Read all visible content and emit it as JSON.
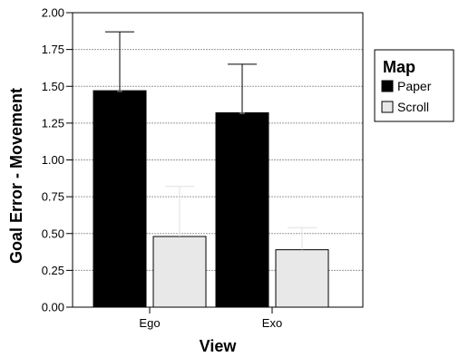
{
  "chart_data": {
    "type": "bar",
    "title": "",
    "xlabel": "View",
    "ylabel": "Goal Error - Movement",
    "categories": [
      "Ego",
      "Exo"
    ],
    "ylim": [
      0,
      2.0
    ],
    "yticks": [
      "0.00",
      "0.25",
      "0.50",
      "0.75",
      "1.00",
      "1.25",
      "1.50",
      "1.75",
      "2.00"
    ],
    "grid": true,
    "legend": {
      "title": "Map",
      "placement": "right"
    },
    "series": [
      {
        "name": "Paper",
        "color": "#000000",
        "values": [
          1.47,
          1.32
        ],
        "error_upper": [
          1.87,
          1.65
        ]
      },
      {
        "name": "Scroll",
        "color": "#e8e8e8",
        "values": [
          0.48,
          0.39
        ],
        "error_upper": [
          0.82,
          0.54
        ]
      }
    ]
  }
}
